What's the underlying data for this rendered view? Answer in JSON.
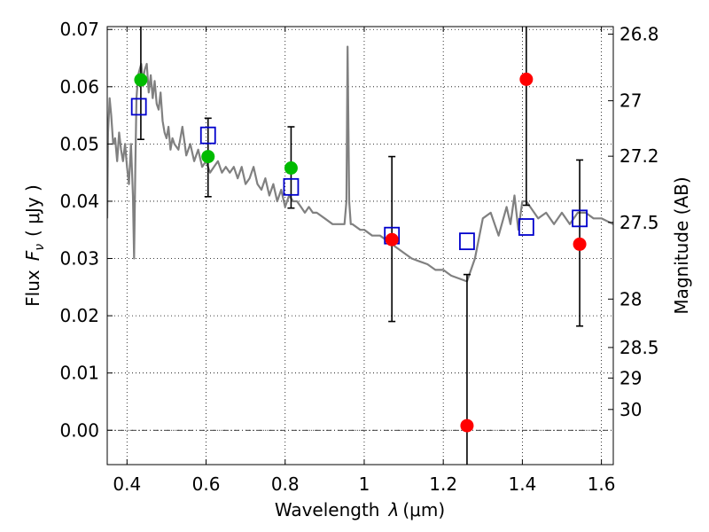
{
  "chart_data": {
    "type": "scatter",
    "xlabel_prefix": "Wavelength",
    "xlabel_symbol": "λ",
    "xlabel_unit": "(μm)",
    "ylabel_prefix": "Flux",
    "ylabel_symbol": "F",
    "ylabel_sub": "ν",
    "ylabel_unit": "( μJy )",
    "y2label": "Magnitude (AB)",
    "xlim": [
      0.35,
      1.63
    ],
    "ylim": [
      -0.006,
      0.0705
    ],
    "grid": true,
    "x_ticks": [
      0.4,
      0.6,
      0.8,
      1.0,
      1.2,
      1.4,
      1.6
    ],
    "x_tick_labels": [
      "0.4",
      "0.6",
      "0.8",
      "1",
      "1.2",
      "1.4",
      "1.6"
    ],
    "y_ticks": [
      0.0,
      0.01,
      0.02,
      0.03,
      0.04,
      0.05,
      0.06,
      0.07
    ],
    "y_tick_labels": [
      "0.00",
      "0.01",
      "0.02",
      "0.03",
      "0.04",
      "0.05",
      "0.06",
      "0.07"
    ],
    "y2_ticks": [
      26.8,
      27.0,
      27.2,
      27.5,
      28.0,
      28.5,
      29.0,
      30.0
    ],
    "y2_tick_labels": [
      "26.8",
      "27",
      "27.2",
      "27.5",
      "28",
      "28.5",
      "29",
      "30"
    ],
    "colors": {
      "model": "#808080",
      "green": "#00bb00",
      "red": "#ff0000",
      "box": "#0000cc",
      "errorbar": "#000000"
    },
    "model_spectrum": {
      "x": [
        0.35,
        0.352,
        0.356,
        0.36,
        0.365,
        0.37,
        0.375,
        0.38,
        0.385,
        0.39,
        0.395,
        0.4,
        0.405,
        0.41,
        0.415,
        0.418,
        0.421,
        0.424,
        0.428,
        0.432,
        0.436,
        0.44,
        0.445,
        0.45,
        0.455,
        0.46,
        0.465,
        0.47,
        0.475,
        0.48,
        0.485,
        0.49,
        0.495,
        0.5,
        0.505,
        0.51,
        0.515,
        0.52,
        0.53,
        0.54,
        0.55,
        0.56,
        0.57,
        0.58,
        0.59,
        0.6,
        0.61,
        0.62,
        0.63,
        0.64,
        0.65,
        0.66,
        0.67,
        0.68,
        0.69,
        0.7,
        0.71,
        0.72,
        0.73,
        0.74,
        0.75,
        0.76,
        0.77,
        0.78,
        0.79,
        0.8,
        0.81,
        0.82,
        0.83,
        0.84,
        0.85,
        0.86,
        0.87,
        0.88,
        0.9,
        0.92,
        0.94,
        0.95,
        0.955,
        0.958,
        0.962,
        0.966,
        0.97,
        0.99,
        1.0,
        1.02,
        1.04,
        1.06,
        1.08,
        1.1,
        1.12,
        1.14,
        1.16,
        1.18,
        1.2,
        1.22,
        1.24,
        1.26,
        1.28,
        1.3,
        1.32,
        1.34,
        1.36,
        1.37,
        1.38,
        1.39,
        1.4,
        1.41,
        1.42,
        1.43,
        1.44,
        1.46,
        1.48,
        1.5,
        1.52,
        1.54,
        1.56,
        1.58,
        1.6,
        1.63
      ],
      "y": [
        0.037,
        0.052,
        0.058,
        0.055,
        0.05,
        0.051,
        0.047,
        0.052,
        0.049,
        0.047,
        0.05,
        0.046,
        0.043,
        0.05,
        0.041,
        0.03,
        0.046,
        0.058,
        0.062,
        0.063,
        0.064,
        0.061,
        0.063,
        0.064,
        0.059,
        0.062,
        0.058,
        0.061,
        0.057,
        0.056,
        0.059,
        0.054,
        0.052,
        0.051,
        0.053,
        0.049,
        0.051,
        0.05,
        0.049,
        0.053,
        0.048,
        0.05,
        0.047,
        0.049,
        0.046,
        0.047,
        0.045,
        0.046,
        0.047,
        0.045,
        0.046,
        0.045,
        0.046,
        0.044,
        0.046,
        0.043,
        0.044,
        0.046,
        0.043,
        0.042,
        0.044,
        0.041,
        0.043,
        0.04,
        0.042,
        0.039,
        0.041,
        0.04,
        0.04,
        0.039,
        0.038,
        0.039,
        0.038,
        0.038,
        0.037,
        0.036,
        0.036,
        0.036,
        0.04,
        0.067,
        0.04,
        0.036,
        0.036,
        0.035,
        0.035,
        0.034,
        0.034,
        0.033,
        0.032,
        0.031,
        0.03,
        0.0295,
        0.029,
        0.028,
        0.028,
        0.027,
        0.0265,
        0.026,
        0.03,
        0.037,
        0.038,
        0.034,
        0.039,
        0.036,
        0.041,
        0.035,
        0.04,
        0.04,
        0.039,
        0.038,
        0.037,
        0.038,
        0.036,
        0.038,
        0.036,
        0.038,
        0.038,
        0.037,
        0.037,
        0.036
      ]
    },
    "series": [
      {
        "marker": "open-square",
        "x": [
          0.43,
          0.605,
          0.815,
          1.07,
          1.26,
          1.41,
          1.545
        ],
        "y": [
          0.0565,
          0.0515,
          0.0425,
          0.034,
          0.033,
          0.0355,
          0.037
        ]
      },
      {
        "marker": "filled-circle-green",
        "x": [
          0.435,
          0.605,
          0.815
        ],
        "y": [
          0.0612,
          0.0478,
          0.0458
        ]
      },
      {
        "marker": "filled-circle-red",
        "x": [
          1.07,
          1.26,
          1.41,
          1.545
        ],
        "y": [
          0.0333,
          0.0008,
          0.0613,
          0.0325
        ]
      }
    ],
    "error_bars": [
      {
        "x": 0.435,
        "low": 0.0508,
        "high": 0.0705,
        "cap_low": true,
        "cap_high": false
      },
      {
        "x": 0.605,
        "low": 0.0408,
        "high": 0.0545,
        "cap_low": true,
        "cap_high": true
      },
      {
        "x": 0.815,
        "low": 0.0388,
        "high": 0.053,
        "cap_low": true,
        "cap_high": true
      },
      {
        "x": 1.07,
        "low": 0.019,
        "high": 0.0478,
        "cap_low": true,
        "cap_high": true
      },
      {
        "x": 1.26,
        "low": -0.006,
        "high": 0.0272,
        "cap_low": false,
        "cap_high": true
      },
      {
        "x": 1.41,
        "low": 0.0393,
        "high": 0.0705,
        "cap_low": true,
        "cap_high": false
      },
      {
        "x": 1.545,
        "low": 0.0182,
        "high": 0.0472,
        "cap_low": true,
        "cap_high": true
      }
    ]
  }
}
